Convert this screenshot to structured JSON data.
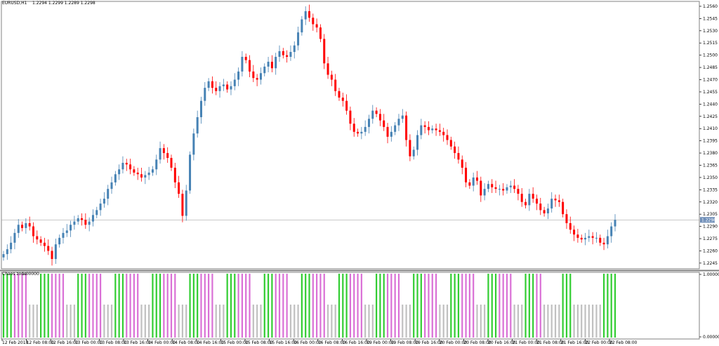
{
  "header": {
    "title": "EURUSD,H1",
    "ohlc": "1.2294 1.2299 1.2289 1.2298"
  },
  "indicator": {
    "name": "Chaos zone",
    "value": "1.00000"
  },
  "price_axis": {
    "labels": [
      "1.2560",
      "1.2545",
      "1.2530",
      "1.2515",
      "1.2500",
      "1.2485",
      "1.2470",
      "1.2455",
      "1.2440",
      "1.2425",
      "1.2410",
      "1.2395",
      "1.2380",
      "1.2365",
      "1.2350",
      "1.2335",
      "1.2320",
      "1.2305",
      "1.2290",
      "1.2275",
      "1.2260",
      "1.2245"
    ],
    "current_price": "1.2298",
    "range": [
      1.2238,
      1.2566
    ]
  },
  "indicator_axis": {
    "labels": [
      "1.00000",
      "0.00000"
    ]
  },
  "time_axis": {
    "labels": [
      "12 Feb 2018",
      "12 Feb 08:00",
      "12 Feb 16:00",
      "13 Feb 00:00",
      "13 Feb 08:00",
      "13 Feb 16:00",
      "14 Feb 00:00",
      "14 Feb 08:00",
      "14 Feb 16:00",
      "15 Feb 00:00",
      "15 Feb 08:00",
      "15 Feb 16:00",
      "16 Feb 00:00",
      "16 Feb 08:00",
      "16 Feb 16:00",
      "19 Feb 00:00",
      "19 Feb 08:00",
      "19 Feb 16:00",
      "20 Feb 00:00",
      "20 Feb 08:00",
      "20 Feb 16:00",
      "21 Feb 00:00",
      "21 Feb 08:00",
      "21 Feb 16:00",
      "22 Feb 00:00",
      "22 Feb 08:00"
    ]
  },
  "colors": {
    "bull": "#4682B4",
    "bear": "#FF0000",
    "zone_green": "#32CD32",
    "zone_violet": "#DA70D6",
    "zone_gray": "#C0C0C0",
    "frame": "#808080"
  },
  "chart_data": [
    {
      "type": "candlestick",
      "title": "EURUSD,H1",
      "ylim": [
        1.2238,
        1.2566
      ],
      "closes": [
        1.2256,
        1.2262,
        1.227,
        1.2282,
        1.2292,
        1.2288,
        1.2294,
        1.229,
        1.2278,
        1.2274,
        1.227,
        1.2266,
        1.226,
        1.225,
        1.2268,
        1.2276,
        1.2282,
        1.2285,
        1.2292,
        1.2296,
        1.23,
        1.2298,
        1.2292,
        1.2296,
        1.2304,
        1.231,
        1.2318,
        1.2324,
        1.2336,
        1.2344,
        1.2354,
        1.236,
        1.2368,
        1.2366,
        1.236,
        1.2356,
        1.2354,
        1.235,
        1.2353,
        1.2356,
        1.236,
        1.2372,
        1.2386,
        1.238,
        1.2374,
        1.2362,
        1.2344,
        1.233,
        1.2303,
        1.2334,
        1.2378,
        1.2404,
        1.2424,
        1.2444,
        1.246,
        1.2468,
        1.246,
        1.2456,
        1.2462,
        1.2464,
        1.2458,
        1.2462,
        1.247,
        1.248,
        1.2498,
        1.2494,
        1.248,
        1.2472,
        1.247,
        1.2478,
        1.2486,
        1.2492,
        1.2484,
        1.2498,
        1.2505,
        1.25,
        1.2498,
        1.2504,
        1.2512,
        1.2528,
        1.2544,
        1.2554,
        1.2546,
        1.2538,
        1.2534,
        1.252,
        1.249,
        1.2476,
        1.247,
        1.2456,
        1.2448,
        1.2444,
        1.2432,
        1.2416,
        1.2406,
        1.2404,
        1.2406,
        1.2412,
        1.2422,
        1.2432,
        1.2428,
        1.242,
        1.2412,
        1.24,
        1.2406,
        1.2414,
        1.2422,
        1.2426,
        1.2396,
        1.2376,
        1.2384,
        1.2402,
        1.2414,
        1.2412,
        1.2408,
        1.241,
        1.2408,
        1.2406,
        1.2402,
        1.2396,
        1.2388,
        1.238,
        1.2372,
        1.2362,
        1.2344,
        1.234,
        1.235,
        1.2346,
        1.2328,
        1.2336,
        1.2342,
        1.2338,
        1.2336,
        1.2336,
        1.2334,
        1.2338,
        1.234,
        1.2336,
        1.233,
        1.232,
        1.2316,
        1.233,
        1.2324,
        1.2318,
        1.231,
        1.2306,
        1.2312,
        1.2324,
        1.2322,
        1.232,
        1.2305,
        1.2294,
        1.2286,
        1.228,
        1.2276,
        1.2274,
        1.2276,
        1.2278,
        1.2276,
        1.2276,
        1.227,
        1.2268,
        1.2278,
        1.229,
        1.2298
      ]
    },
    {
      "type": "bar",
      "title": "Chaos zone",
      "ylim": [
        0,
        1
      ],
      "series": [
        {
          "name": "green",
          "count": 48
        },
        {
          "name": "violet",
          "count": 58
        },
        {
          "name": "gray",
          "count": 55
        }
      ]
    }
  ]
}
